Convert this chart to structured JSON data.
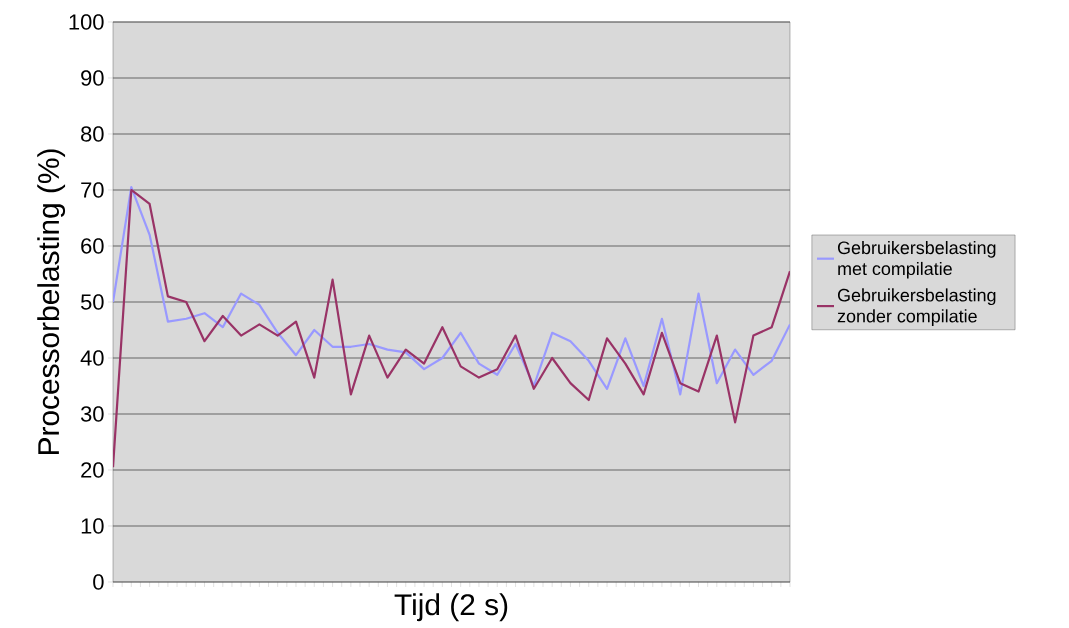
{
  "chart_data": {
    "type": "line",
    "xlabel": "Tijd (2 s)",
    "ylabel": "Processorbelasting (%)",
    "categories": [
      null,
      null,
      null,
      null,
      null,
      null,
      null,
      null,
      null,
      null,
      null,
      null,
      null,
      null,
      null,
      null,
      null,
      null,
      null,
      null,
      null,
      null,
      null,
      null,
      null,
      null,
      null,
      null,
      null,
      null,
      null,
      null,
      null,
      null,
      null,
      null,
      null,
      null
    ],
    "series": [
      {
        "name": "Gebruikersbelasting met compilatie",
        "color": "#9999ff",
        "values": [
          50,
          70.5,
          62,
          46.5,
          47,
          48,
          45.5,
          51.5,
          49.5,
          44.5,
          40.5,
          45,
          42,
          42,
          42.5,
          41.5,
          41,
          38,
          40,
          44.5,
          39,
          37,
          42.5,
          35,
          44.5,
          43,
          39.5,
          34.5,
          43.5,
          35,
          47,
          33.5,
          51.5,
          35.5,
          41.5,
          37,
          39.5,
          46
        ]
      },
      {
        "name": "Gebruikersbelasting zonder compilatie",
        "color": "#993366",
        "values": [
          20.5,
          70,
          67.5,
          51,
          50,
          43,
          47.5,
          44,
          46,
          44,
          46.5,
          36.5,
          54,
          33.5,
          44,
          36.5,
          41.5,
          39,
          45.5,
          38.5,
          36.5,
          38,
          44,
          34.5,
          40,
          35.5,
          32.5,
          43.5,
          39,
          33.5,
          44.5,
          35.5,
          34,
          44,
          28.5,
          44,
          45.5,
          55.5
        ]
      }
    ],
    "ylim": [
      0,
      100
    ],
    "yticks": [
      0,
      10,
      20,
      30,
      40,
      50,
      60,
      70,
      80,
      90,
      100
    ],
    "grid": "y",
    "legend": "right",
    "marker": "none",
    "line_style": "solid"
  }
}
